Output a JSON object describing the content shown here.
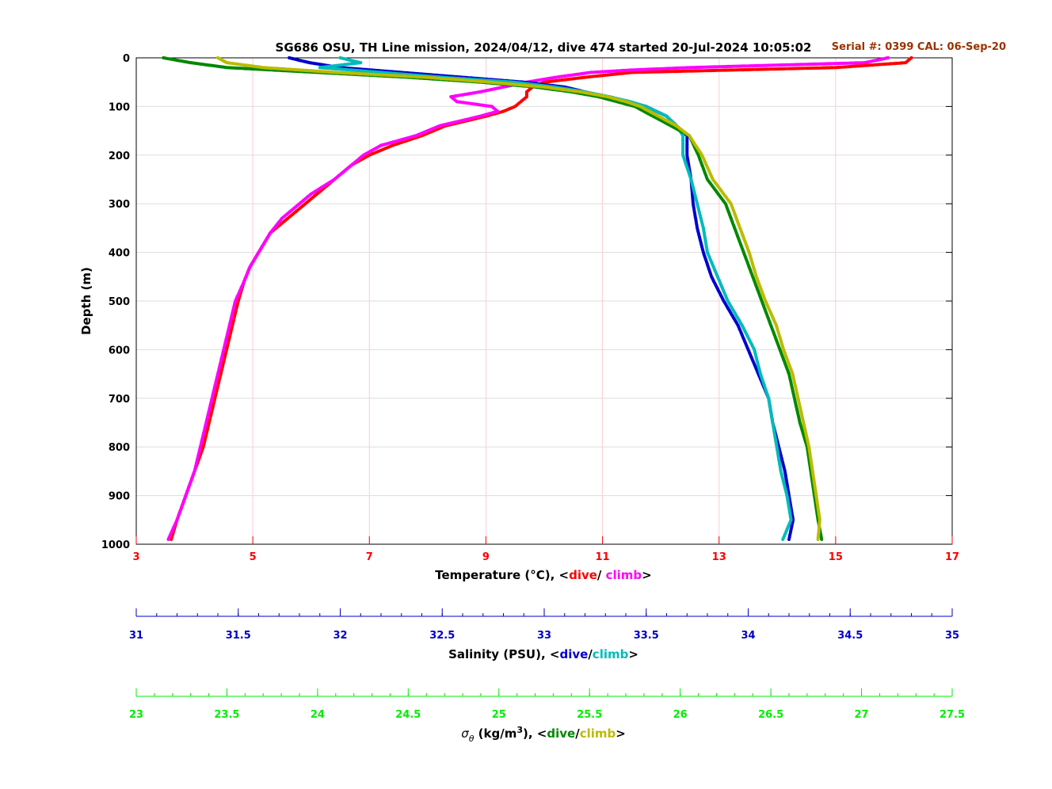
{
  "chart_data": {
    "type": "scatter",
    "title": "SG686 OSU, TH Line mission, 2024/04/12, dive 474 started 20-Jul-2024 10:05:02",
    "annotation": "Serial #: 0399  CAL: 06-Sep-20",
    "ylabel": "Depth (m)",
    "ylim": [
      0,
      1000
    ],
    "y_ticks": [
      0,
      100,
      200,
      300,
      400,
      500,
      600,
      700,
      800,
      900,
      1000
    ],
    "y_reversed": true,
    "grid": true,
    "axes": {
      "temperature": {
        "label_prefix": "Temperature (°C), <",
        "label_dive": "dive",
        "label_sep": "/ ",
        "label_climb": "climb",
        "label_suffix": ">",
        "xlim": [
          3,
          17
        ],
        "ticks": [
          3,
          5,
          7,
          9,
          11,
          13,
          15,
          17
        ],
        "color": "#ff0000"
      },
      "salinity": {
        "label_prefix": "Salinity (PSU), <",
        "label_dive": "dive",
        "label_sep": "/",
        "label_climb": "climb",
        "label_suffix": ">",
        "xlim": [
          31,
          35
        ],
        "ticks": [
          31,
          31.5,
          32,
          32.5,
          33,
          33.5,
          34,
          34.5,
          35
        ],
        "color": "#0000cc"
      },
      "density": {
        "label_sigma": "σ",
        "label_theta": "θ",
        "label_units": " (kg/m",
        "label_cube": "3",
        "label_prefix": "), <",
        "label_dive": "dive",
        "label_sep": "/",
        "label_climb": "climb",
        "label_suffix": ">",
        "xlim": [
          23,
          27.5
        ],
        "ticks": [
          23,
          23.5,
          24,
          24.5,
          25,
          25.5,
          26,
          26.5,
          27,
          27.5
        ],
        "color": "#00ee00"
      }
    },
    "series": [
      {
        "key": "temp_dive",
        "axis": "temperature",
        "color": "#ff0000",
        "depth": [
          0,
          10,
          20,
          30,
          40,
          50,
          60,
          70,
          80,
          90,
          100,
          110,
          120,
          140,
          160,
          180,
          200,
          220,
          250,
          280,
          300,
          330,
          360,
          400,
          430,
          460,
          500,
          550,
          600,
          650,
          700,
          750,
          800,
          850,
          900,
          950,
          990
        ],
        "values": [
          16.3,
          16.2,
          15.0,
          11.5,
          10.7,
          10.0,
          9.8,
          9.7,
          9.7,
          9.6,
          9.5,
          9.3,
          9.0,
          8.3,
          7.9,
          7.4,
          7.0,
          6.7,
          6.4,
          6.1,
          5.9,
          5.6,
          5.3,
          5.1,
          4.95,
          4.85,
          4.75,
          4.65,
          4.55,
          4.45,
          4.35,
          4.25,
          4.15,
          4.0,
          3.85,
          3.7,
          3.6
        ]
      },
      {
        "key": "temp_climb",
        "axis": "temperature",
        "color": "#ff00ff",
        "depth": [
          0,
          10,
          15,
          20,
          25,
          30,
          40,
          50,
          60,
          70,
          80,
          90,
          100,
          110,
          120,
          140,
          160,
          180,
          200,
          220,
          250,
          280,
          300,
          330,
          360,
          400,
          430,
          460,
          500,
          550,
          600,
          650,
          700,
          750,
          800,
          850,
          900,
          950,
          990
        ],
        "values": [
          15.9,
          15.5,
          14.0,
          12.5,
          11.5,
          10.8,
          10.2,
          9.7,
          9.3,
          8.9,
          8.4,
          8.5,
          9.1,
          9.2,
          8.9,
          8.2,
          7.8,
          7.2,
          6.9,
          6.7,
          6.4,
          6.0,
          5.8,
          5.5,
          5.3,
          5.1,
          4.95,
          4.85,
          4.7,
          4.6,
          4.5,
          4.4,
          4.3,
          4.2,
          4.1,
          4.0,
          3.85,
          3.7,
          3.55
        ]
      },
      {
        "key": "sal_dive",
        "axis": "salinity",
        "color": "#0000cc",
        "depth": [
          0,
          10,
          20,
          30,
          40,
          50,
          60,
          70,
          80,
          90,
          100,
          120,
          140,
          160,
          200,
          250,
          300,
          350,
          400,
          450,
          500,
          550,
          600,
          650,
          700,
          750,
          800,
          850,
          900,
          950,
          990
        ],
        "values": [
          31.75,
          31.85,
          32.0,
          32.3,
          32.6,
          32.9,
          33.1,
          33.2,
          33.3,
          33.4,
          33.5,
          33.6,
          33.65,
          33.7,
          33.7,
          33.72,
          33.73,
          33.75,
          33.78,
          33.82,
          33.88,
          33.95,
          34.0,
          34.05,
          34.1,
          34.12,
          34.15,
          34.18,
          34.2,
          34.22,
          34.2
        ]
      },
      {
        "key": "sal_climb",
        "axis": "salinity",
        "color": "#00bbbb",
        "depth": [
          0,
          10,
          20,
          30,
          40,
          50,
          60,
          70,
          80,
          90,
          100,
          120,
          140,
          160,
          200,
          250,
          300,
          350,
          400,
          450,
          500,
          550,
          600,
          650,
          700,
          750,
          800,
          850,
          900,
          950,
          990
        ],
        "values": [
          32.0,
          32.1,
          31.9,
          32.2,
          32.5,
          32.85,
          33.05,
          33.2,
          33.32,
          33.42,
          33.5,
          33.6,
          33.65,
          33.68,
          33.68,
          33.72,
          33.75,
          33.78,
          33.8,
          33.85,
          33.9,
          33.97,
          34.03,
          34.06,
          34.1,
          34.12,
          34.14,
          34.16,
          34.19,
          34.21,
          34.17
        ]
      },
      {
        "key": "dens_dive",
        "axis": "density",
        "color": "#008800",
        "depth": [
          0,
          10,
          20,
          30,
          40,
          50,
          60,
          70,
          80,
          90,
          100,
          120,
          140,
          160,
          200,
          250,
          300,
          350,
          400,
          450,
          500,
          550,
          600,
          650,
          700,
          750,
          800,
          850,
          900,
          950,
          990
        ],
        "values": [
          23.15,
          23.3,
          23.5,
          24.0,
          24.5,
          24.9,
          25.2,
          25.4,
          25.55,
          25.65,
          25.75,
          25.85,
          25.95,
          26.05,
          26.1,
          26.15,
          26.25,
          26.3,
          26.35,
          26.4,
          26.45,
          26.5,
          26.55,
          26.6,
          26.63,
          26.66,
          26.7,
          26.72,
          26.74,
          26.76,
          26.78
        ]
      },
      {
        "key": "dens_climb",
        "axis": "density",
        "color": "#bbbb00",
        "depth": [
          0,
          10,
          20,
          30,
          40,
          50,
          60,
          70,
          80,
          90,
          100,
          120,
          140,
          160,
          200,
          250,
          300,
          350,
          400,
          450,
          500,
          550,
          600,
          650,
          700,
          750,
          800,
          850,
          900,
          950,
          990
        ],
        "values": [
          23.45,
          23.5,
          23.7,
          24.1,
          24.6,
          24.95,
          25.25,
          25.45,
          25.6,
          25.7,
          25.78,
          25.88,
          25.98,
          26.05,
          26.12,
          26.18,
          26.28,
          26.33,
          26.38,
          26.42,
          26.47,
          26.53,
          26.57,
          26.62,
          26.65,
          26.68,
          26.71,
          26.73,
          26.75,
          26.77,
          26.76
        ]
      }
    ]
  }
}
